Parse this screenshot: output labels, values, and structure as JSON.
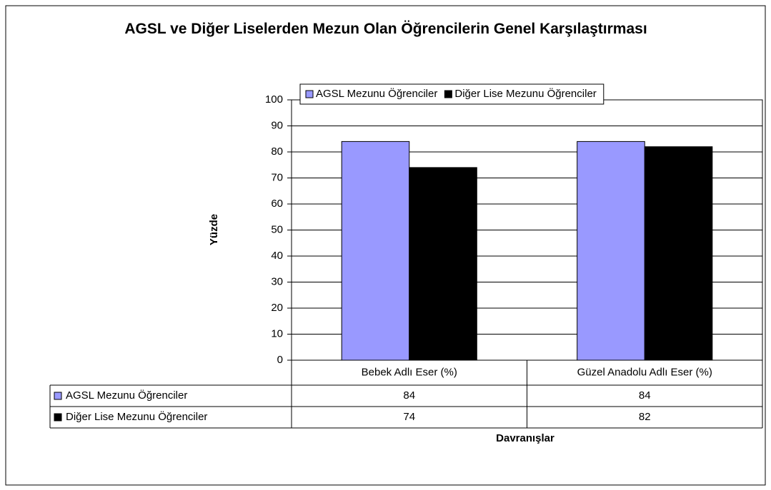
{
  "chart_data": {
    "type": "bar",
    "title": "AGSL ve Diğer Liselerden Mezun Olan Öğrencilerin Genel Karşılaştırması",
    "x_label": "Davranışlar",
    "y_label": "Yüzde",
    "categories": [
      "Bebek Adlı Eser (%)",
      "Güzel Anadolu Adlı Eser (%)"
    ],
    "series": [
      {
        "name": "AGSL Mezunu Öğrenciler",
        "color": "#9999ff",
        "values": [
          84,
          84
        ]
      },
      {
        "name": "Diğer Lise Mezunu Öğrenciler",
        "color": "#000000",
        "values": [
          74,
          82
        ]
      }
    ],
    "ylim": [
      0,
      100
    ],
    "yticks": [
      0,
      10,
      20,
      30,
      40,
      50,
      60,
      70,
      80,
      90,
      100
    ],
    "grid": true,
    "legend": "top",
    "data_table": true
  }
}
